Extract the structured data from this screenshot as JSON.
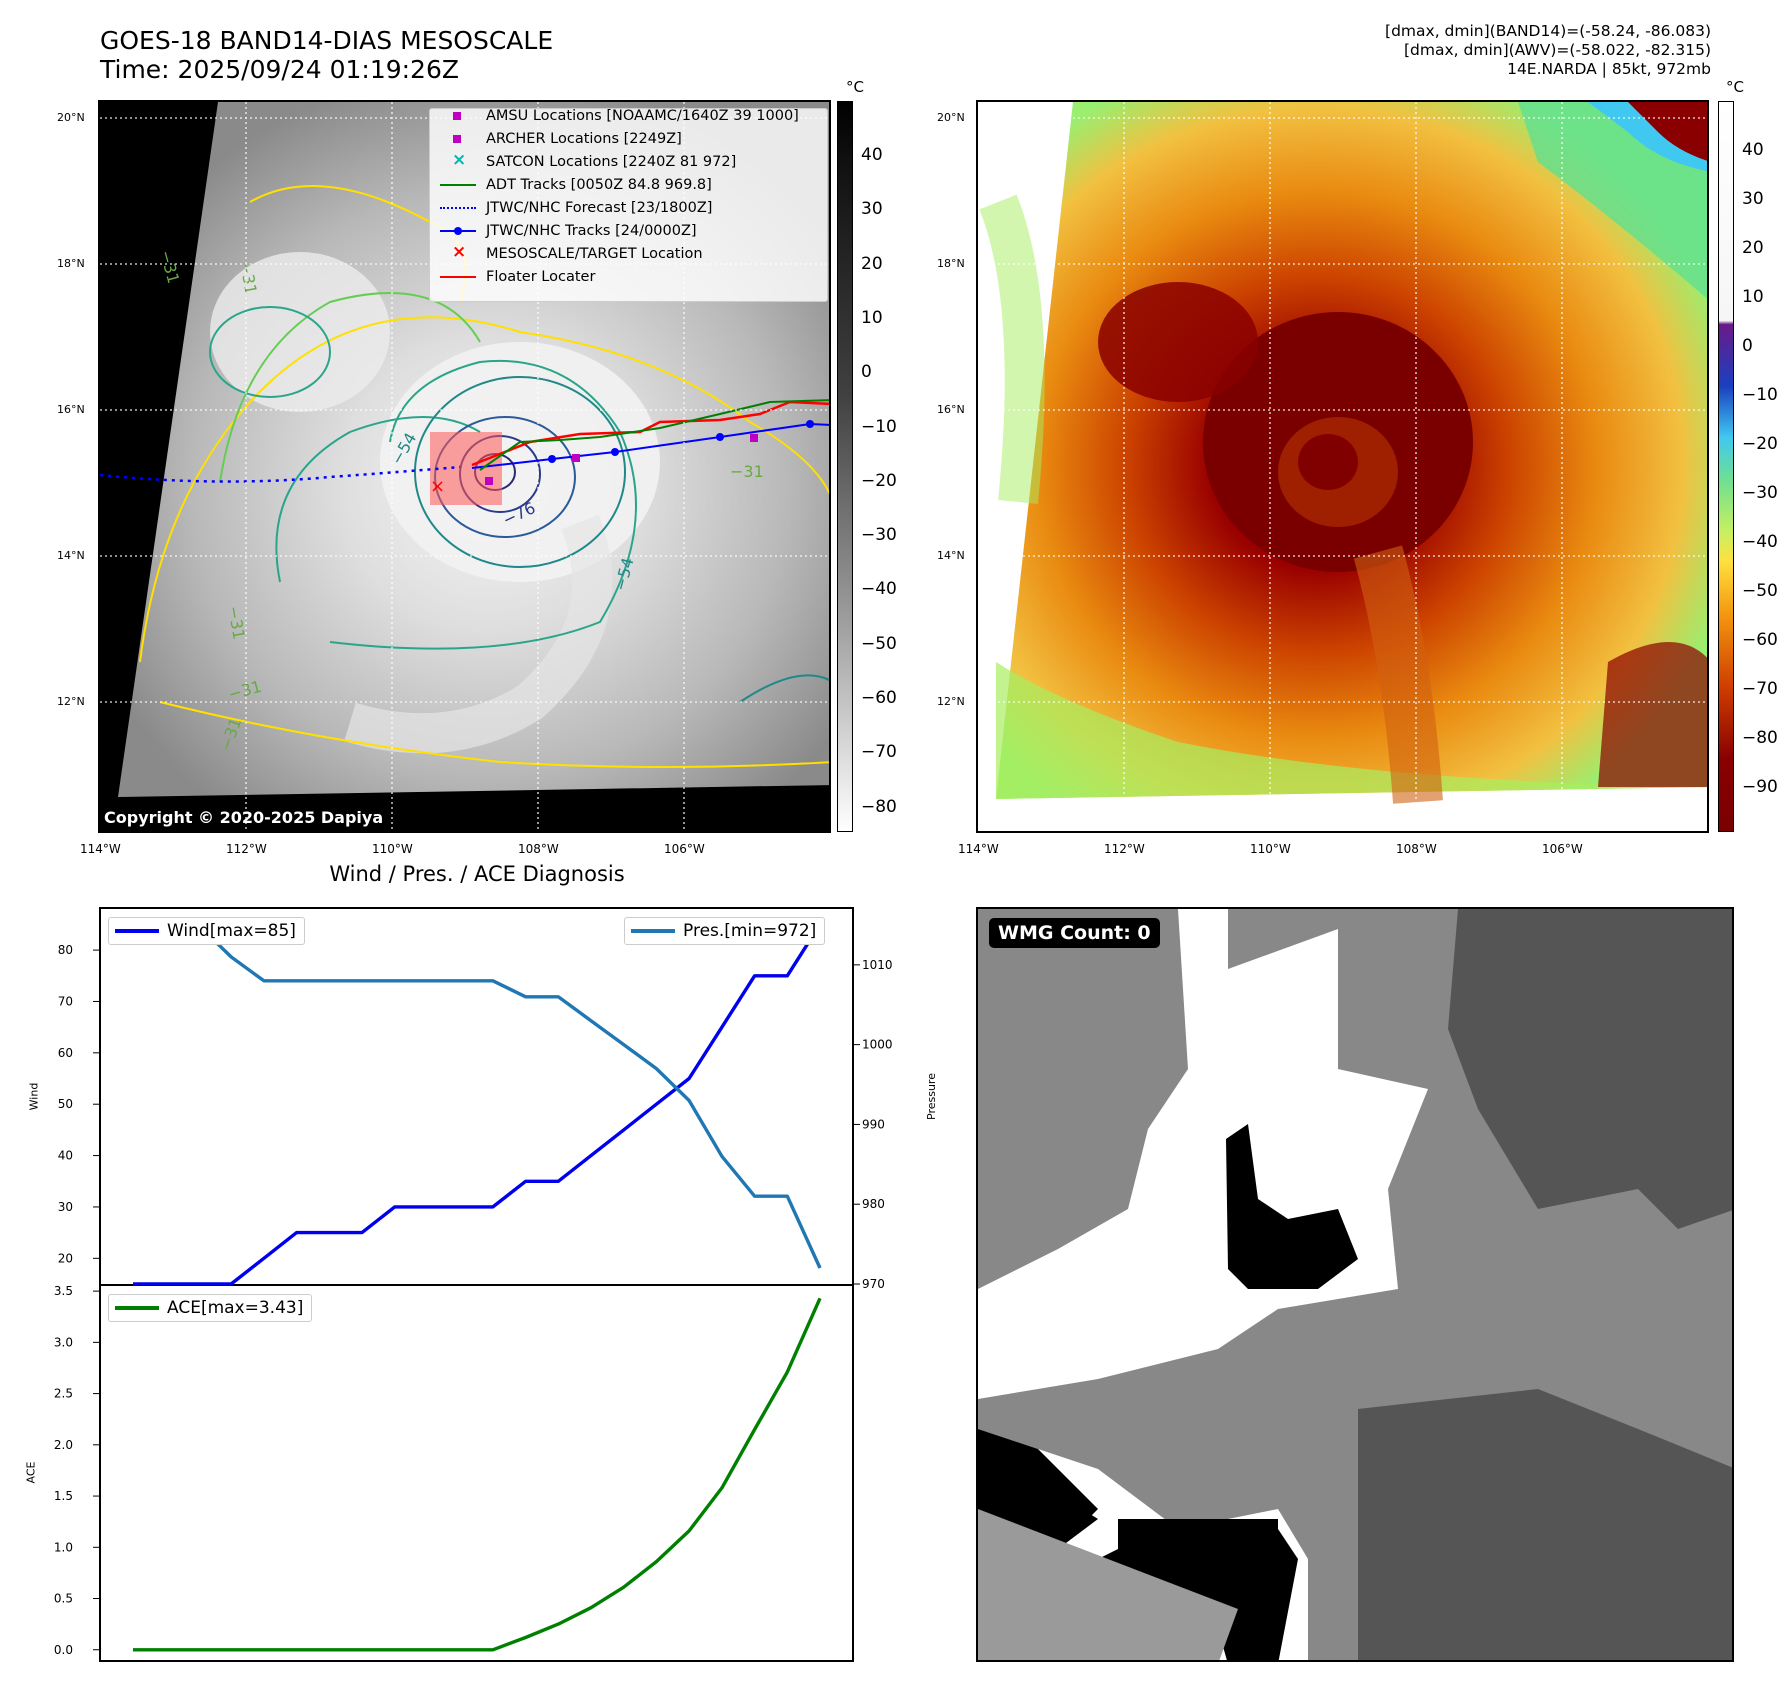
{
  "header": {
    "title_line1": "GOES-18 BAND14-DIAS MESOSCALE",
    "title_line2": "Time: 2025/09/24 01:19:26Z",
    "stats_line1": "[dmax, dmin](BAND14)=(-58.24, -86.083)",
    "stats_line2": "[dmax, dmin](AWV)=(-58.022, -82.315)",
    "stats_line3": "14E.NARDA | 85kt, 972mb"
  },
  "maps": {
    "lat_labels": [
      "20°N",
      "18°N",
      "16°N",
      "14°N",
      "12°N"
    ],
    "lon_labels": [
      "114°W",
      "112°W",
      "110°W",
      "108°W",
      "106°W"
    ],
    "unit": "°C",
    "left_colorbar_ticks": [
      "40",
      "30",
      "20",
      "10",
      "0",
      "−10",
      "−20",
      "−30",
      "−40",
      "−50",
      "−60",
      "−70",
      "−80"
    ],
    "right_colorbar_ticks": [
      "40",
      "30",
      "20",
      "10",
      "0",
      "−10",
      "−20",
      "−30",
      "−40",
      "−50",
      "−60",
      "−70",
      "−80",
      "−90"
    ],
    "contour_labels": [
      "−76",
      "−54",
      "−31",
      "−31",
      "−31",
      "−31",
      "−31",
      "−31",
      "−54"
    ],
    "copyright": "Copyright © 2020-2025 Dapiya",
    "legend": [
      {
        "label": "AMSU Locations [NOAAMC/1640Z 39 1000]",
        "color": "#c000c0",
        "symbol": "square"
      },
      {
        "label": "ARCHER Locations [2249Z]",
        "color": "#c000c0",
        "symbol": "square"
      },
      {
        "label": "SATCON Locations [2240Z 81 972]",
        "color": "#00b5b5",
        "symbol": "x"
      },
      {
        "label": "ADT Tracks [0050Z 84.8 969.8]",
        "color": "#008000",
        "symbol": "line"
      },
      {
        "label": "JTWC/NHC Forecast [23/1800Z]",
        "color": "#0000ff",
        "symbol": "dotted"
      },
      {
        "label": "JTWC/NHC Tracks [24/0000Z]",
        "color": "#0000ff",
        "symbol": "line-dot"
      },
      {
        "label": "MESOSCALE/TARGET Location",
        "color": "#ff0000",
        "symbol": "x"
      },
      {
        "label": "Floater Locater",
        "color": "#ff0000",
        "symbol": "line"
      }
    ]
  },
  "wmg": {
    "label": "WMG Count: 0"
  },
  "chart_data": {
    "type": "line",
    "title": "Wind / Pres. / ACE Diagnosis",
    "panels": [
      {
        "name": "wind-pressure",
        "ylabel": "Wind",
        "ylabel2": "Pressure",
        "ylim": [
          15,
          88
        ],
        "ylim2": [
          970,
          1017
        ],
        "yticks": [
          20,
          30,
          40,
          50,
          60,
          70,
          80
        ],
        "yticks2": [
          970,
          980,
          990,
          1000,
          1010
        ],
        "series": [
          {
            "name": "Wind[max=85]",
            "axis": "left",
            "color": "#0000ee",
            "values": [
              15,
              15,
              15,
              15,
              20,
              25,
              25,
              25,
              30,
              30,
              30,
              30,
              35,
              35,
              40,
              45,
              50,
              55,
              65,
              75,
              75,
              85
            ]
          },
          {
            "name": "Pres.[min=972]",
            "axis": "right",
            "color": "#1f77b4",
            "values": [
              1015,
              1015,
              1015,
              1011,
              1008,
              1008,
              1008,
              1008,
              1008,
              1008,
              1008,
              1008,
              1006,
              1006,
              1003,
              1000,
              997,
              993,
              986,
              981,
              981,
              972
            ]
          }
        ]
      },
      {
        "name": "ace",
        "ylabel": "ACE",
        "ylim": [
          -0.1,
          3.55
        ],
        "yticks": [
          "0.0",
          "0.5",
          "1.0",
          "1.5",
          "2.0",
          "2.5",
          "3.0",
          "3.5"
        ],
        "series": [
          {
            "name": "ACE[max=3.43]",
            "color": "#008000",
            "values": [
              0,
              0,
              0,
              0,
              0,
              0,
              0,
              0,
              0,
              0,
              0,
              0,
              0.12,
              0.25,
              0.41,
              0.61,
              0.86,
              1.16,
              1.58,
              2.15,
              2.71,
              3.43
            ]
          }
        ]
      }
    ]
  }
}
